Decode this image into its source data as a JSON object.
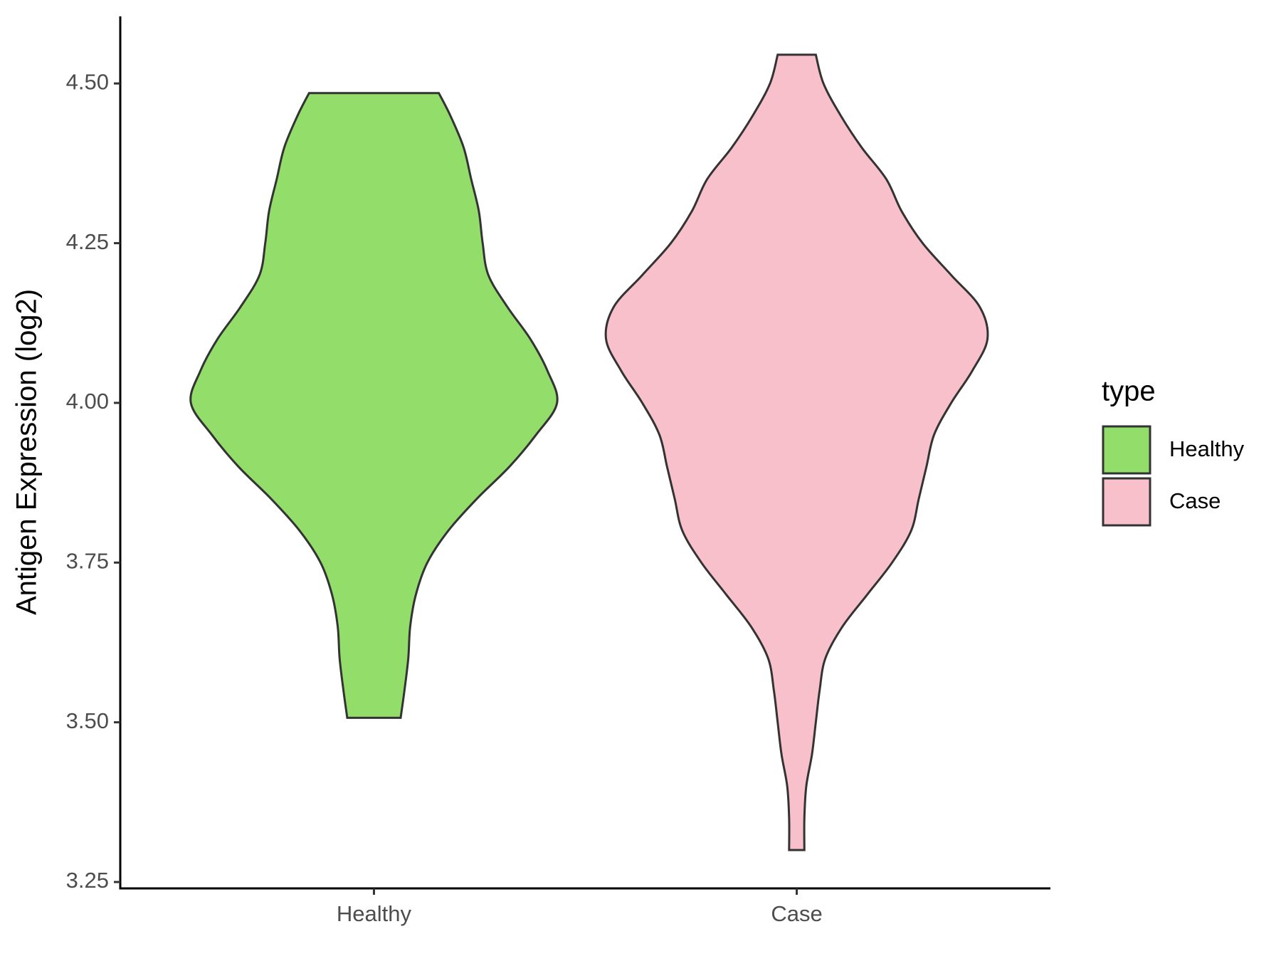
{
  "chart_data": {
    "type": "violin",
    "y_label": "Antigen Expression (log2)",
    "legend_title": "type",
    "categories": [
      "Healthy",
      "Case"
    ],
    "ylim": [
      3.24,
      4.605
    ],
    "yticks": [
      3.25,
      {
        "value": 3.5,
        "label": "3.50"
      },
      3.75,
      {
        "value": 4.0,
        "label": "4.00"
      },
      4.25,
      {
        "value": 4.5,
        "label": "4.50"
      }
    ],
    "series": [
      {
        "name": "Healthy",
        "color": "#93dd6a",
        "y": [
          3.507,
          3.55,
          3.6,
          3.65,
          3.7,
          3.75,
          3.8,
          3.85,
          3.9,
          3.95,
          4.0,
          4.05,
          4.1,
          4.15,
          4.2,
          4.25,
          4.3,
          4.35,
          4.4,
          4.45,
          4.485
        ],
        "density": [
          0.14,
          0.16,
          0.18,
          0.19,
          0.22,
          0.28,
          0.39,
          0.54,
          0.71,
          0.85,
          0.96,
          0.91,
          0.82,
          0.7,
          0.6,
          0.57,
          0.55,
          0.51,
          0.47,
          0.4,
          0.34
        ]
      },
      {
        "name": "Case",
        "color": "#f7c0cb",
        "y": [
          3.3,
          3.35,
          3.4,
          3.45,
          3.5,
          3.55,
          3.6,
          3.65,
          3.7,
          3.75,
          3.8,
          3.85,
          3.9,
          3.95,
          4.0,
          4.05,
          4.1,
          4.15,
          4.2,
          4.25,
          4.3,
          4.35,
          4.4,
          4.45,
          4.5,
          4.545
        ],
        "density": [
          0.04,
          0.04,
          0.05,
          0.08,
          0.1,
          0.12,
          0.15,
          0.24,
          0.37,
          0.5,
          0.6,
          0.64,
          0.68,
          0.72,
          0.81,
          0.92,
          1.0,
          0.96,
          0.81,
          0.66,
          0.55,
          0.47,
          0.34,
          0.23,
          0.14,
          0.1
        ]
      }
    ]
  }
}
